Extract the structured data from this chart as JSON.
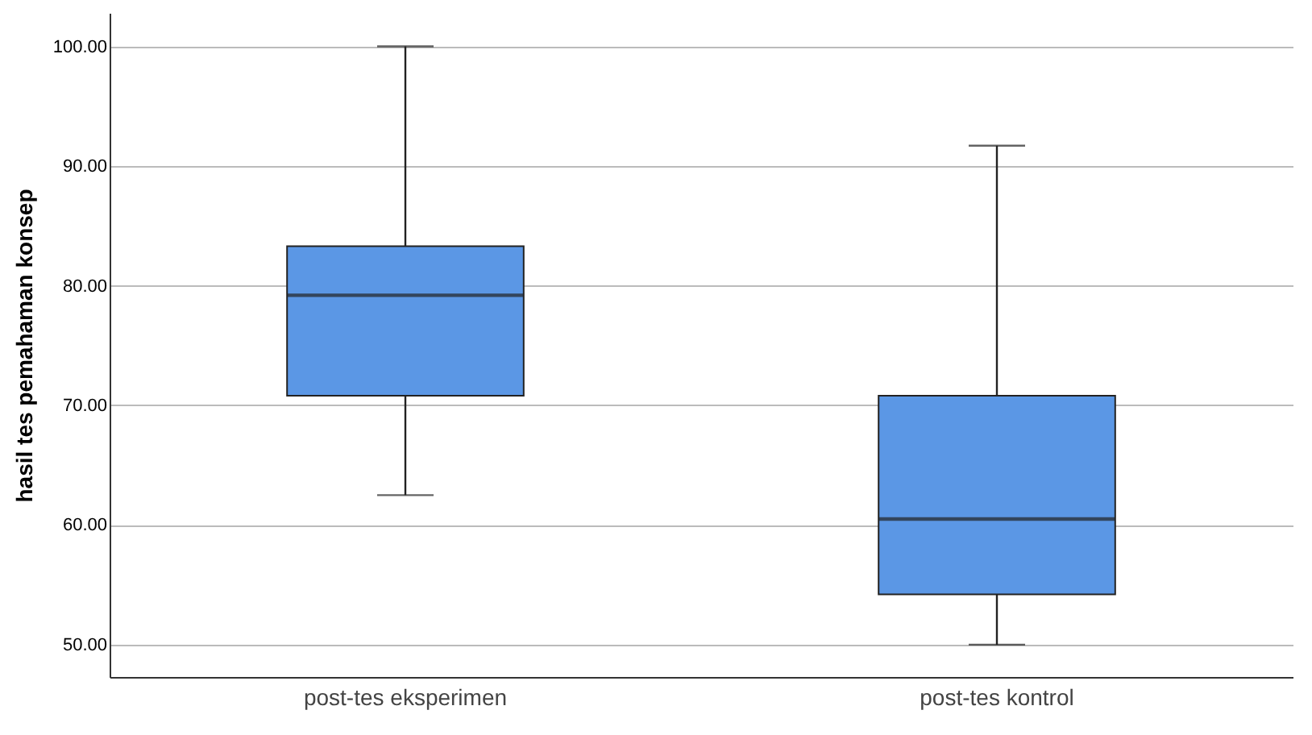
{
  "chart_data": {
    "type": "box",
    "ylabel": "hasil tes pemahaman konsep",
    "categories": [
      "post-tes eksperimen",
      "post-tes kontrol"
    ],
    "boxes": [
      {
        "low": 62.5,
        "q1": 70.8,
        "median": 79.2,
        "q3": 83.3,
        "high": 100
      },
      {
        "low": 50,
        "q1": 54.2,
        "median": 60.5,
        "q3": 70.8,
        "high": 91.7
      }
    ],
    "colors": [
      "#5b97e5",
      "#5b97e5"
    ],
    "ylim": [
      47.3,
      102.8
    ],
    "yticks": [
      {
        "value": 50,
        "label": "50.00"
      },
      {
        "value": 60,
        "label": "60.00"
      },
      {
        "value": 70,
        "label": "70.00"
      },
      {
        "value": 80,
        "label": "80.00"
      },
      {
        "value": 90,
        "label": "90.00"
      },
      {
        "value": 100,
        "label": "100.00"
      }
    ],
    "grid": "y"
  }
}
